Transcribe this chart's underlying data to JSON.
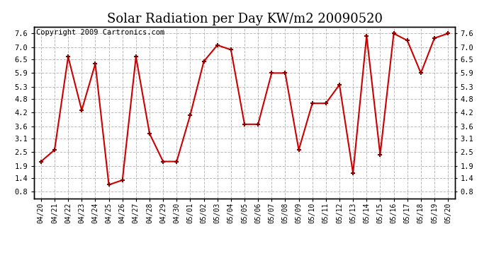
{
  "title": "Solar Radiation per Day KW/m2 20090520",
  "copyright": "Copyright 2009 Cartronics.com",
  "x_labels": [
    "04/20",
    "04/21",
    "04/22",
    "04/23",
    "04/24",
    "04/25",
    "04/26",
    "04/27",
    "04/28",
    "04/29",
    "04/30",
    "05/01",
    "05/02",
    "05/03",
    "05/04",
    "05/05",
    "05/06",
    "05/07",
    "05/08",
    "05/09",
    "05/10",
    "05/11",
    "05/12",
    "05/13",
    "05/14",
    "05/15",
    "05/16",
    "05/17",
    "05/18",
    "05/19",
    "05/20"
  ],
  "y_values": [
    2.1,
    2.6,
    6.6,
    4.3,
    6.3,
    1.1,
    1.3,
    6.6,
    3.3,
    2.1,
    2.1,
    4.1,
    6.4,
    7.1,
    6.9,
    3.7,
    3.7,
    5.9,
    5.9,
    2.6,
    4.6,
    4.6,
    5.4,
    1.6,
    7.5,
    2.4,
    7.6,
    7.3,
    5.9,
    7.4,
    7.6
  ],
  "y_ticks": [
    0.8,
    1.4,
    1.9,
    2.5,
    3.1,
    3.6,
    4.2,
    4.8,
    5.3,
    5.9,
    6.5,
    7.0,
    7.6
  ],
  "y_min": 0.5,
  "y_max": 7.9,
  "line_color": "#cc0000",
  "marker": "+",
  "marker_color": "#880000",
  "bg_color": "#ffffff",
  "grid_color": "#bbbbbb",
  "title_fontsize": 13,
  "copyright_fontsize": 7.5,
  "tick_fontsize": 7,
  "ytick_fontsize": 7.5
}
